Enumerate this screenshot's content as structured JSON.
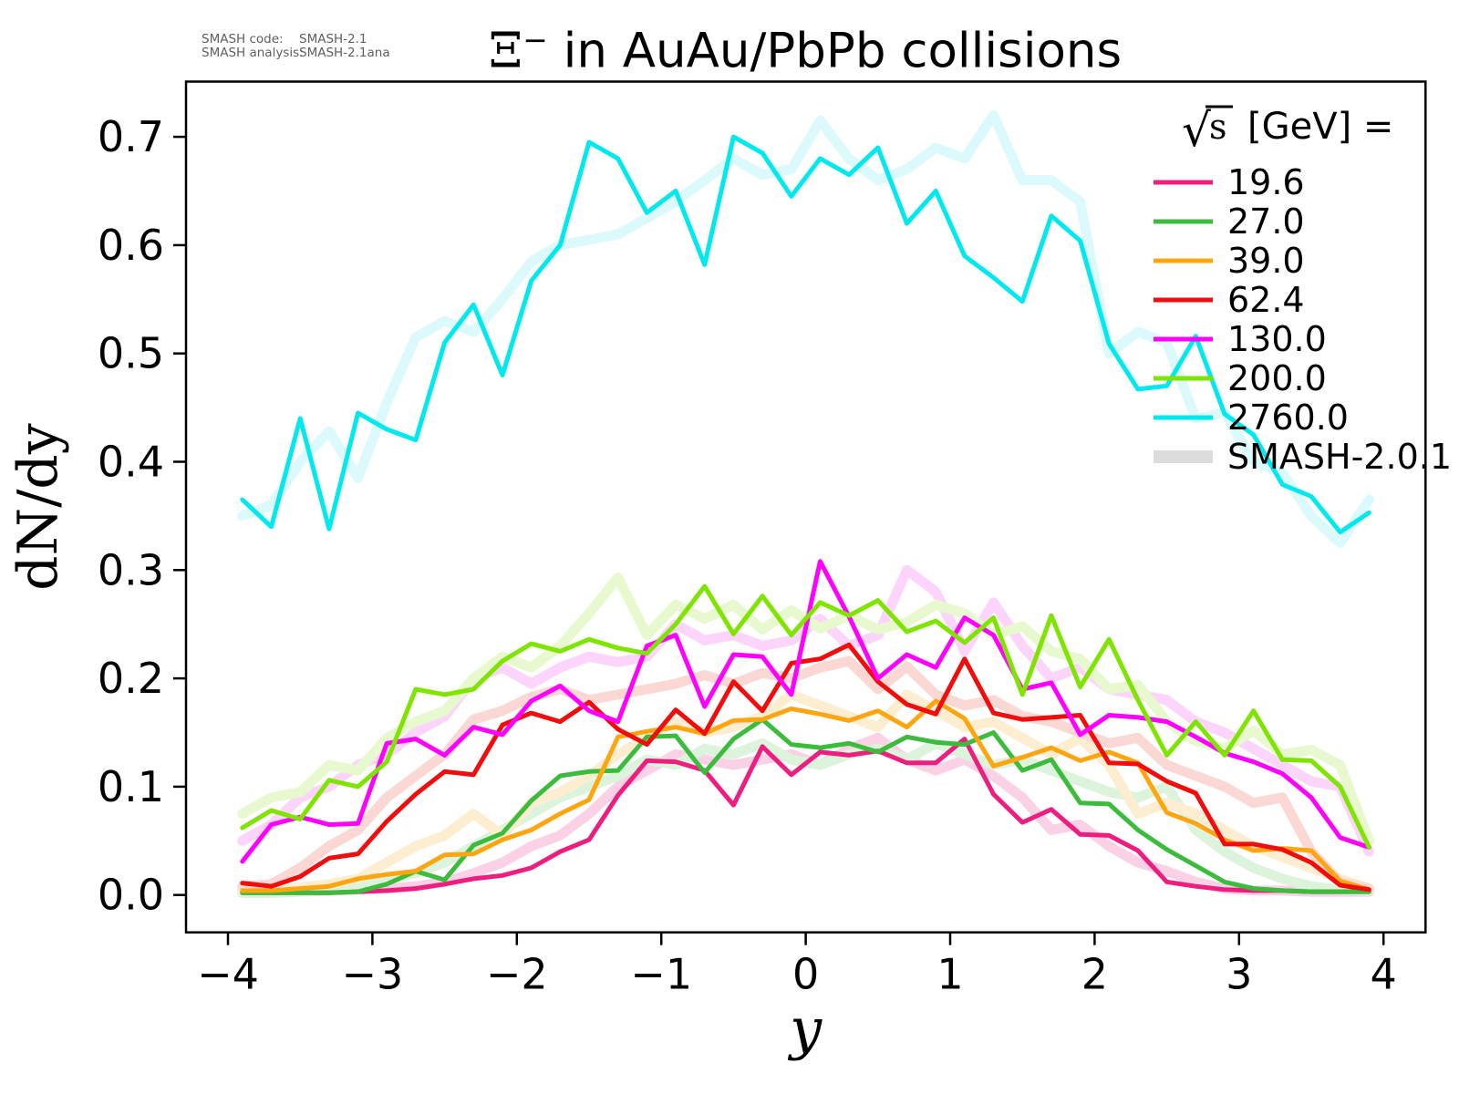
{
  "title": {
    "xi": "Ξ",
    "sup": "−",
    "rest": " in AuAu/PbPb collisions"
  },
  "annotation": {
    "line1_label": "SMASH code:",
    "line1_value": "SMASH-2.1",
    "line2_label": "SMASH analysis:",
    "line2_value": "SMASH-2.1ana"
  },
  "chart_data": {
    "type": "line",
    "title": "Ξ− in AuAu/PbPb collisions",
    "xlabel": "y",
    "ylabel": "dN/dy",
    "xlim": [
      -4.29,
      4.29
    ],
    "ylim": [
      -0.036,
      0.751
    ],
    "grid": false,
    "legend_position": "upper right",
    "legend_title": "√s  [GeV] =",
    "x_tick_labels": [
      "−4",
      "−3",
      "−2",
      "−1",
      "0",
      "1",
      "2",
      "3",
      "4"
    ],
    "x_tick_values": [
      -4,
      -3,
      -2,
      -1,
      0,
      1,
      2,
      3,
      4
    ],
    "y_tick_labels": [
      "0.0",
      "0.1",
      "0.2",
      "0.3",
      "0.4",
      "0.5",
      "0.6",
      "0.7"
    ],
    "y_tick_values": [
      0.0,
      0.1,
      0.2,
      0.3,
      0.4,
      0.5,
      0.6,
      0.7
    ],
    "x": [
      -3.9,
      -3.7,
      -3.5,
      -3.3,
      -3.1,
      -2.9,
      -2.7,
      -2.5,
      -2.3,
      -2.1,
      -1.9,
      -1.7,
      -1.5,
      -1.3,
      -1.1,
      -0.9,
      -0.7,
      -0.5,
      -0.3,
      -0.1,
      0.1,
      0.3,
      0.5,
      0.7,
      0.9,
      1.1,
      1.3,
      1.5,
      1.7,
      1.9,
      2.1,
      2.3,
      2.5,
      2.7,
      2.9,
      3.1,
      3.3,
      3.5,
      3.7,
      3.9
    ],
    "series": [
      {
        "energy": "19.6",
        "color": "#ed1e7f",
        "pale_color": "#fbd2e5",
        "smash21": [
          0.002,
          0.002,
          0.002,
          0.002,
          0.003,
          0.004,
          0.006,
          0.01,
          0.015,
          0.018,
          0.025,
          0.04,
          0.051,
          0.092,
          0.124,
          0.123,
          0.115,
          0.083,
          0.137,
          0.111,
          0.132,
          0.129,
          0.133,
          0.122,
          0.122,
          0.144,
          0.093,
          0.067,
          0.079,
          0.056,
          0.055,
          0.041,
          0.012,
          0.008,
          0.005,
          0.004,
          0.004,
          0.003,
          0.003,
          0.003
        ],
        "smash201": [
          0.002,
          0.002,
          0.003,
          0.004,
          0.005,
          0.006,
          0.008,
          0.012,
          0.02,
          0.03,
          0.045,
          0.055,
          0.075,
          0.1,
          0.115,
          0.13,
          0.125,
          0.12,
          0.125,
          0.13,
          0.12,
          0.135,
          0.145,
          0.125,
          0.115,
          0.125,
          0.11,
          0.09,
          0.06,
          0.065,
          0.045,
          0.03,
          0.022,
          0.012,
          0.006,
          0.004,
          0.004,
          0.003,
          0.003,
          0.003
        ]
      },
      {
        "energy": "27.0",
        "color": "#3cbc3c",
        "pale_color": "#dcf3dc",
        "smash21": [
          0.002,
          0.002,
          0.002,
          0.002,
          0.003,
          0.01,
          0.022,
          0.014,
          0.046,
          0.057,
          0.087,
          0.11,
          0.114,
          0.115,
          0.146,
          0.147,
          0.113,
          0.144,
          0.162,
          0.139,
          0.136,
          0.14,
          0.132,
          0.146,
          0.141,
          0.139,
          0.15,
          0.115,
          0.125,
          0.085,
          0.084,
          0.06,
          0.042,
          0.027,
          0.012,
          0.006,
          0.004,
          0.003,
          0.003,
          0.003
        ],
        "smash201": [
          0.002,
          0.002,
          0.003,
          0.005,
          0.008,
          0.015,
          0.02,
          0.03,
          0.045,
          0.06,
          0.075,
          0.09,
          0.1,
          0.11,
          0.125,
          0.12,
          0.135,
          0.13,
          0.14,
          0.125,
          0.12,
          0.13,
          0.135,
          0.125,
          0.14,
          0.13,
          0.12,
          0.125,
          0.115,
          0.105,
          0.095,
          0.09,
          0.1,
          0.06,
          0.04,
          0.025,
          0.015,
          0.008,
          0.005,
          0.004
        ]
      },
      {
        "energy": "39.0",
        "color": "#ffa510",
        "pale_color": "#fdeed2",
        "smash21": [
          0.004,
          0.004,
          0.006,
          0.008,
          0.015,
          0.019,
          0.022,
          0.037,
          0.038,
          0.051,
          0.06,
          0.075,
          0.088,
          0.146,
          0.151,
          0.155,
          0.149,
          0.161,
          0.162,
          0.172,
          0.167,
          0.161,
          0.17,
          0.155,
          0.179,
          0.163,
          0.119,
          0.127,
          0.136,
          0.124,
          0.132,
          0.122,
          0.076,
          0.066,
          0.051,
          0.041,
          0.043,
          0.041,
          0.013,
          0.005
        ],
        "smash201": [
          0.004,
          0.005,
          0.007,
          0.01,
          0.015,
          0.03,
          0.045,
          0.055,
          0.075,
          0.055,
          0.085,
          0.095,
          0.11,
          0.13,
          0.145,
          0.16,
          0.15,
          0.155,
          0.165,
          0.185,
          0.175,
          0.165,
          0.155,
          0.185,
          0.17,
          0.155,
          0.16,
          0.145,
          0.13,
          0.145,
          0.12,
          0.075,
          0.085,
          0.075,
          0.06,
          0.045,
          0.035,
          0.025,
          0.015,
          0.006
        ]
      },
      {
        "energy": "62.4",
        "color": "#f20d0d",
        "pale_color": "#fbd8d4",
        "smash21": [
          0.011,
          0.008,
          0.017,
          0.034,
          0.038,
          0.068,
          0.093,
          0.114,
          0.111,
          0.157,
          0.168,
          0.16,
          0.178,
          0.153,
          0.139,
          0.171,
          0.149,
          0.197,
          0.17,
          0.214,
          0.218,
          0.231,
          0.197,
          0.176,
          0.167,
          0.218,
          0.168,
          0.162,
          0.164,
          0.166,
          0.122,
          0.121,
          0.105,
          0.094,
          0.047,
          0.047,
          0.042,
          0.03,
          0.009,
          0.005
        ],
        "smash201": [
          0.008,
          0.01,
          0.025,
          0.045,
          0.06,
          0.09,
          0.11,
          0.13,
          0.162,
          0.17,
          0.183,
          0.19,
          0.18,
          0.185,
          0.19,
          0.195,
          0.203,
          0.195,
          0.205,
          0.2,
          0.21,
          0.216,
          0.19,
          0.211,
          0.185,
          0.175,
          0.18,
          0.165,
          0.16,
          0.15,
          0.14,
          0.145,
          0.12,
          0.11,
          0.1,
          0.085,
          0.09,
          0.04,
          0.012,
          0.006
        ]
      },
      {
        "energy": "130.0",
        "color": "#ff00ff",
        "pale_color": "#fcd4fc",
        "smash21": [
          0.031,
          0.065,
          0.072,
          0.065,
          0.066,
          0.14,
          0.144,
          0.129,
          0.155,
          0.148,
          0.179,
          0.193,
          0.17,
          0.16,
          0.23,
          0.24,
          0.174,
          0.222,
          0.22,
          0.185,
          0.308,
          0.257,
          0.2,
          0.222,
          0.21,
          0.256,
          0.24,
          0.19,
          0.196,
          0.148,
          0.166,
          0.164,
          0.16,
          0.146,
          0.131,
          0.123,
          0.112,
          0.09,
          0.053,
          0.044
        ],
        "smash201": [
          0.05,
          0.065,
          0.09,
          0.1,
          0.12,
          0.13,
          0.15,
          0.165,
          0.2,
          0.21,
          0.195,
          0.21,
          0.22,
          0.215,
          0.22,
          0.25,
          0.235,
          0.24,
          0.23,
          0.235,
          0.255,
          0.23,
          0.24,
          0.3,
          0.28,
          0.225,
          0.27,
          0.23,
          0.2,
          0.21,
          0.19,
          0.185,
          0.18,
          0.16,
          0.15,
          0.135,
          0.12,
          0.105,
          0.1,
          0.04
        ]
      },
      {
        "energy": "200.0",
        "color": "#7ee400",
        "pale_color": "#e8f9cf",
        "smash21": [
          0.062,
          0.078,
          0.07,
          0.106,
          0.1,
          0.123,
          0.19,
          0.185,
          0.19,
          0.216,
          0.232,
          0.225,
          0.236,
          0.228,
          0.223,
          0.25,
          0.285,
          0.241,
          0.276,
          0.24,
          0.27,
          0.258,
          0.272,
          0.243,
          0.253,
          0.233,
          0.256,
          0.185,
          0.258,
          0.192,
          0.236,
          0.18,
          0.129,
          0.16,
          0.129,
          0.17,
          0.125,
          0.124,
          0.1,
          0.044
        ],
        "smash201": [
          0.075,
          0.09,
          0.095,
          0.12,
          0.115,
          0.145,
          0.16,
          0.17,
          0.2,
          0.22,
          0.21,
          0.23,
          0.26,
          0.293,
          0.24,
          0.268,
          0.255,
          0.268,
          0.245,
          0.263,
          0.246,
          0.258,
          0.245,
          0.252,
          0.268,
          0.26,
          0.24,
          0.248,
          0.225,
          0.218,
          0.19,
          0.194,
          0.16,
          0.142,
          0.135,
          0.152,
          0.13,
          0.134,
          0.12,
          0.05
        ]
      },
      {
        "energy": "2760.0",
        "color": "#00e9ee",
        "pale_color": "#dcfafc",
        "smash21": [
          0.365,
          0.34,
          0.44,
          0.338,
          0.445,
          0.43,
          0.42,
          0.51,
          0.545,
          0.48,
          0.567,
          0.6,
          0.695,
          0.68,
          0.63,
          0.65,
          0.582,
          0.7,
          0.685,
          0.645,
          0.68,
          0.665,
          0.69,
          0.62,
          0.65,
          0.59,
          0.57,
          0.548,
          0.627,
          0.604,
          0.509,
          0.467,
          0.47,
          0.516,
          0.444,
          0.425,
          0.379,
          0.368,
          0.335,
          0.353
        ],
        "smash201": [
          0.35,
          0.36,
          0.4,
          0.428,
          0.385,
          0.455,
          0.515,
          0.53,
          0.52,
          0.55,
          0.585,
          0.6,
          0.605,
          0.61,
          0.625,
          0.64,
          0.66,
          0.68,
          0.665,
          0.67,
          0.715,
          0.68,
          0.66,
          0.67,
          0.69,
          0.68,
          0.72,
          0.66,
          0.66,
          0.64,
          0.5,
          0.52,
          0.51,
          0.44,
          0.445,
          0.4,
          0.39,
          0.35,
          0.325,
          0.365
        ]
      }
    ],
    "legend_entries": [
      "19.6",
      "27.0",
      "39.0",
      "62.4",
      "130.0",
      "200.0",
      "2760.0",
      "SMASH-2.0.1"
    ],
    "smash201_legend": {
      "label": "SMASH-2.0.1",
      "color": "#dcdcdc"
    }
  }
}
